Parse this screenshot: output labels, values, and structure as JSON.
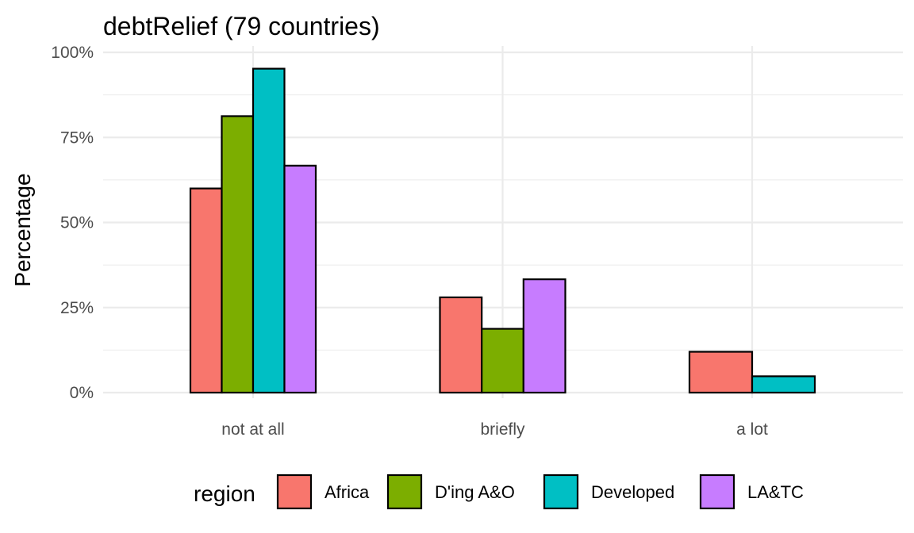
{
  "chart_data": {
    "type": "bar",
    "title": "debtRelief (79 countries)",
    "xlabel": "",
    "ylabel": "Percentage",
    "categories": [
      "not at all",
      "briefly",
      "a lot"
    ],
    "y_ticks": [
      "0%",
      "25%",
      "50%",
      "75%",
      "100%"
    ],
    "ylim": [
      0,
      100
    ],
    "grid": true,
    "legend": {
      "title": "region",
      "position": "bottom"
    },
    "series": [
      {
        "name": "Africa",
        "color": "#F8766D",
        "values": [
          60,
          28,
          12
        ]
      },
      {
        "name": "D'ing A&O",
        "color": "#7CAE00",
        "values": [
          81.25,
          18.75,
          null
        ]
      },
      {
        "name": "Developed",
        "color": "#00BFC4",
        "values": [
          95.2,
          null,
          4.8
        ]
      },
      {
        "name": "LA&TC",
        "color": "#C77CFF",
        "values": [
          66.7,
          33.3,
          null
        ]
      }
    ]
  }
}
